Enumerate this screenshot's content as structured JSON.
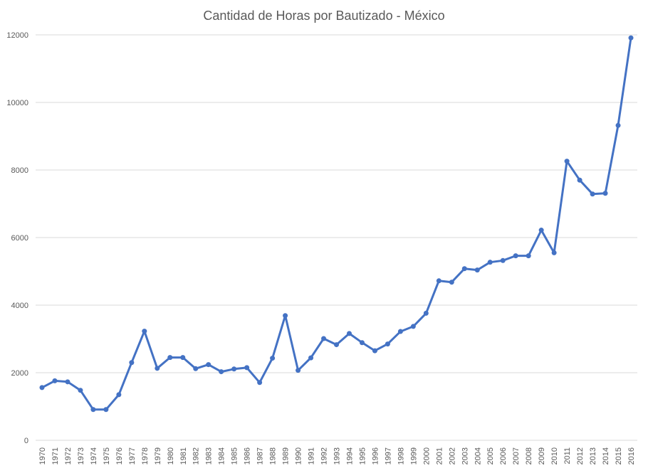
{
  "chart_data": {
    "type": "line",
    "title": "Cantidad de Horas por Bautizado - México",
    "xlabel": "",
    "ylabel": "",
    "ylim": [
      0,
      12000
    ],
    "yticks": [
      0,
      2000,
      4000,
      6000,
      8000,
      10000,
      12000
    ],
    "grid": true,
    "legend": "none",
    "colors": {
      "line": "#4472c4",
      "grid": "#d9d9d9",
      "text": "#595959"
    },
    "categories": [
      "1970",
      "1971",
      "1972",
      "1973",
      "1974",
      "1975",
      "1976",
      "1977",
      "1978",
      "1979",
      "1980",
      "1981",
      "1982",
      "1983",
      "1984",
      "1985",
      "1986",
      "1987",
      "1988",
      "1989",
      "1990",
      "1991",
      "1992",
      "1993",
      "1994",
      "1995",
      "1996",
      "1997",
      "1998",
      "1999",
      "2000",
      "2001",
      "2002",
      "2003",
      "2004",
      "2005",
      "2006",
      "2007",
      "2008",
      "2009",
      "2010",
      "2011",
      "2012",
      "2013",
      "2014",
      "2015",
      "2016"
    ],
    "values": [
      1560,
      1760,
      1730,
      1480,
      910,
      910,
      1350,
      2300,
      3230,
      2130,
      2450,
      2450,
      2120,
      2240,
      2030,
      2110,
      2150,
      1710,
      2430,
      3690,
      2070,
      2440,
      3010,
      2830,
      3160,
      2890,
      2650,
      2850,
      3220,
      3370,
      3760,
      4720,
      4680,
      5080,
      5040,
      5270,
      5320,
      5460,
      5460,
      6220,
      5550,
      8260,
      7700,
      7290,
      7310,
      9320,
      11910
    ]
  }
}
